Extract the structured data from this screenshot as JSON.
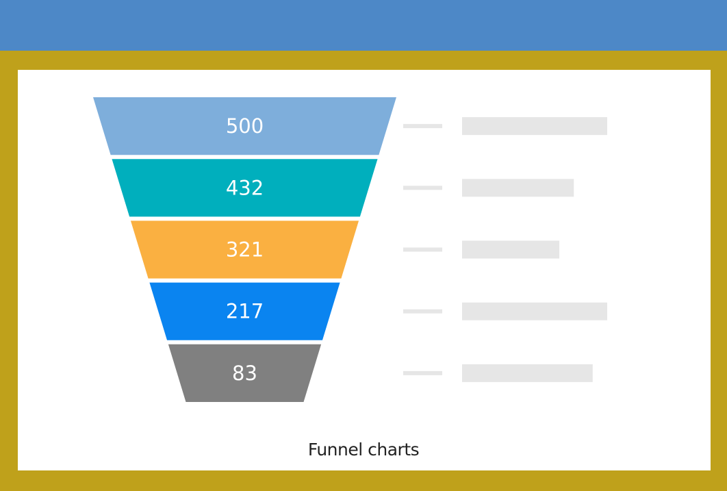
{
  "caption": "Funnel charts",
  "colors": {
    "header": "#4d88c7",
    "frame": "#bfa11b",
    "placeholder": "#e6e6e6"
  },
  "chart_data": {
    "type": "funnel",
    "values": [
      500,
      432,
      321,
      217,
      83
    ],
    "labels": [
      "500",
      "432",
      "321",
      "217",
      "83"
    ],
    "colors": [
      "#7eaedb",
      "#00afbd",
      "#fab041",
      "#0a84f0",
      "#808080"
    ],
    "legend": "right",
    "legend_placeholder_bars": [
      1.0,
      0.77,
      0.67,
      1.0,
      0.9
    ]
  }
}
